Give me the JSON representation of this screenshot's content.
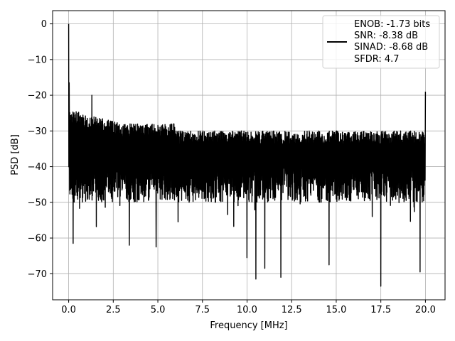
{
  "chart_data": {
    "type": "line",
    "title": "",
    "xlabel": "Frequency [MHz]",
    "ylabel": "PSD [dB]",
    "xlim": [
      -0.9,
      21.1
    ],
    "ylim": [
      -77.3,
      3.7
    ],
    "grid": true,
    "legend_position": "top-right",
    "x_ticks": [
      0.0,
      2.5,
      5.0,
      7.5,
      10.0,
      12.5,
      15.0,
      17.5,
      20.0
    ],
    "x_tick_labels": [
      "0.0",
      "2.5",
      "5.0",
      "7.5",
      "10.0",
      "12.5",
      "15.0",
      "17.5",
      "20.0"
    ],
    "y_ticks": [
      0,
      -10,
      -20,
      -30,
      -40,
      -50,
      -60,
      -70
    ],
    "y_tick_labels": [
      "0",
      "−10",
      "−20",
      "−30",
      "−40",
      "−50",
      "−60",
      "−70"
    ],
    "series": [
      {
        "color": "#000000",
        "x_range": [
          0.0,
          20.0
        ],
        "points": 2000,
        "noise_floor_db": [
          -50,
          -28
        ],
        "spikes": [
          {
            "x": 0.0,
            "y": 0.0
          },
          {
            "x": 0.03,
            "y": -16.5
          },
          {
            "x": 0.1,
            "y": -27
          },
          {
            "x": 0.15,
            "y": -46
          },
          {
            "x": 0.25,
            "y": -61.5
          },
          {
            "x": 1.3,
            "y": -20.0
          },
          {
            "x": 3.4,
            "y": -62.0
          },
          {
            "x": 4.9,
            "y": -62.5
          },
          {
            "x": 10.0,
            "y": -65.5
          },
          {
            "x": 10.5,
            "y": -71.5
          },
          {
            "x": 11.0,
            "y": -68.5
          },
          {
            "x": 11.9,
            "y": -71.0
          },
          {
            "x": 14.6,
            "y": -67.5
          },
          {
            "x": 17.5,
            "y": -73.5
          },
          {
            "x": 19.7,
            "y": -69.5
          },
          {
            "x": 20.0,
            "y": -19.0
          }
        ]
      }
    ],
    "legend": {
      "lines": [
        "ENOB: -1.73 bits",
        "SNR: -8.38 dB",
        "SINAD: -8.68 dB",
        "SFDR: 4.7"
      ]
    }
  }
}
